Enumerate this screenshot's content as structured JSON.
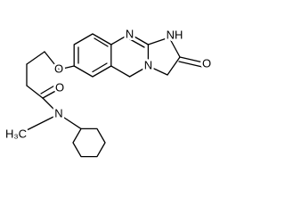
{
  "atoms": [
    "N",
    "NH",
    "N",
    "O",
    "O",
    "O",
    "N",
    "H₃C"
  ]
}
